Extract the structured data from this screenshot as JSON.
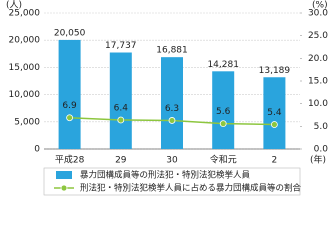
{
  "chart_data": {
    "type": "bar_line",
    "y_label": "(人)",
    "y2_label": "(%)",
    "x_label": "(年)",
    "categories": [
      "平成28",
      "29",
      "30",
      "令和元",
      "2"
    ],
    "series": [
      {
        "name": "暴力団構成員等の刑法犯・特別法犯検挙人員",
        "type": "bar",
        "color": "#2aa4dd",
        "values": [
          20050,
          17737,
          16881,
          14281,
          13189
        ],
        "value_labels": [
          "20,050",
          "17,737",
          "16,881",
          "14,281",
          "13,189"
        ]
      },
      {
        "name": "刑法犯・特別法犯検挙人員に占める暴力団構成員等の割合",
        "type": "line",
        "color": "#8dc63f",
        "axis": "y2",
        "values": [
          6.9,
          6.4,
          6.3,
          5.6,
          5.4
        ]
      }
    ],
    "ylim": [
      0,
      25000
    ],
    "yticks": [
      0,
      {
        "value": 5000,
        "label": "5,000"
      },
      {
        "value": 10000,
        "label": "10,000"
      },
      {
        "value": 15000,
        "label": "15,000"
      },
      {
        "value": 20000,
        "label": "20,000"
      },
      {
        "value": 25000,
        "label": "25,000"
      }
    ],
    "y2lim": [
      0,
      30
    ],
    "y2ticks": [
      {
        "value": 0,
        "label": "0.0"
      },
      {
        "value": 5,
        "label": "5.0"
      },
      {
        "value": 10,
        "label": "10.0"
      },
      {
        "value": 15,
        "label": "15.0"
      },
      {
        "value": 20,
        "label": "20.0"
      },
      {
        "value": 25,
        "label": "25.0"
      },
      {
        "value": 30,
        "label": "30.0"
      }
    ],
    "grid": true
  }
}
